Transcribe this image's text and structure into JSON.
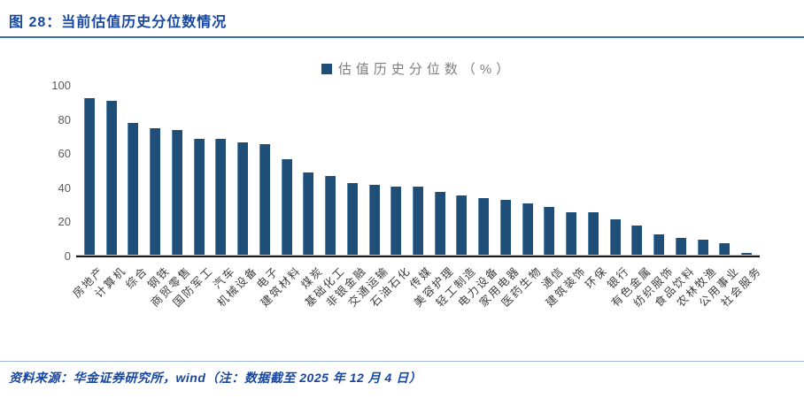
{
  "header": {
    "title": "图 28：当前估值历史分位数情况"
  },
  "chart_data": {
    "type": "bar",
    "title": "当前估值历史分位数情况",
    "legend": "估值历史分位数（%）",
    "legend_position": "top-center",
    "grid": false,
    "ylim": [
      0,
      100
    ],
    "yticks": [
      0,
      20,
      40,
      60,
      80,
      100
    ],
    "bar_color": "#1F4E79",
    "categories": [
      "房地产",
      "计算机",
      "综合",
      "钢铁",
      "商贸零售",
      "国防军工",
      "汽车",
      "机械设备",
      "电子",
      "建筑材料",
      "煤炭",
      "基础化工",
      "非银金融",
      "交通运输",
      "石油石化",
      "传媒",
      "美容护理",
      "轻工制造",
      "电力设备",
      "家用电器",
      "医药生物",
      "通信",
      "建筑装饰",
      "环保",
      "银行",
      "有色金属",
      "纺织服饰",
      "食品饮料",
      "农林牧渔",
      "公用事业",
      "社会服务"
    ],
    "values": [
      93,
      91,
      78,
      75,
      74,
      69,
      69,
      67,
      66,
      57,
      49,
      47,
      43,
      42,
      41,
      41,
      38,
      36,
      34,
      33,
      31,
      29,
      26,
      26,
      22,
      18,
      13,
      11,
      10,
      8,
      2
    ]
  },
  "footer": {
    "source_text": "资料来源：华金证券研究所，wind（注：数据截至 2025 年 12 月 4 日）"
  },
  "colors": {
    "title_blue": "#1747A0",
    "divider_blue": "#2E74B5",
    "bar_blue": "#1F4E79",
    "tick_gray": "#595959",
    "legend_text_gray": "#7F7F7F",
    "axis_black": "#1A1A1A"
  }
}
